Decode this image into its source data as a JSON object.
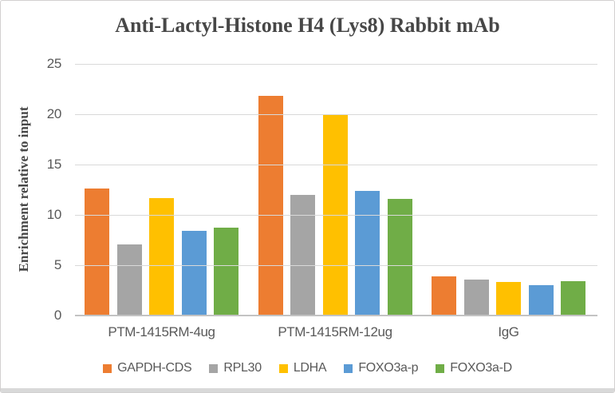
{
  "frame": {
    "background": "#ffffff",
    "border_color": "#d2d0d0",
    "bottom_strip_color": "#d9d9d9"
  },
  "chart_data": {
    "type": "bar",
    "title": "Anti-Lactyl-Histone H4 (Lys8) Rabbit mAb",
    "xlabel": "",
    "ylabel": "Enrichment relative to input",
    "categories": [
      "PTM-1415RM-4ug",
      "PTM-1415RM-12ug",
      "IgG"
    ],
    "series": [
      {
        "name": "GAPDH-CDS",
        "color": "#ED7D31",
        "values": [
          12.6,
          21.8,
          3.9
        ]
      },
      {
        "name": "RPL30",
        "color": "#A5A5A5",
        "values": [
          7.1,
          12.0,
          3.6
        ]
      },
      {
        "name": "LDHA",
        "color": "#FFC000",
        "values": [
          11.7,
          20.0,
          3.3
        ]
      },
      {
        "name": "FOXO3a-p",
        "color": "#5B9BD5",
        "values": [
          8.4,
          12.4,
          3.0
        ]
      },
      {
        "name": "FOXO3a-D",
        "color": "#70AD47",
        "values": [
          8.7,
          11.6,
          3.4
        ]
      }
    ],
    "ylim": [
      0,
      25
    ],
    "yticks": [
      0,
      5,
      10,
      15,
      20,
      25
    ],
    "grid": true,
    "gridline_color": "#d9d9d9",
    "axis_line_color": "#c3c3c3",
    "label_color": "#595959",
    "title_color": "#474747",
    "legend_position": "bottom"
  }
}
